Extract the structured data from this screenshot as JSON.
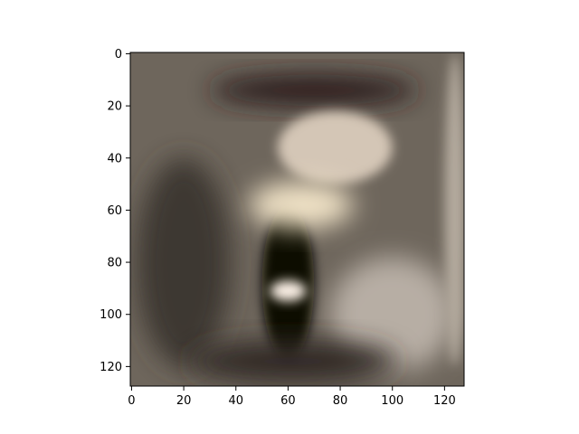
{
  "chart_data": {
    "type": "heatmap",
    "title": "",
    "xlabel": "",
    "ylabel": "",
    "xlim": [
      -0.5,
      127.5
    ],
    "ylim": [
      127.5,
      -0.5
    ],
    "y_inverted": true,
    "grid": false,
    "x_ticks": [
      0,
      20,
      40,
      60,
      80,
      100,
      120
    ],
    "x_tick_labels": [
      "0",
      "20",
      "40",
      "60",
      "80",
      "100",
      "120"
    ],
    "y_ticks": [
      0,
      20,
      40,
      60,
      80,
      100,
      120
    ],
    "y_tick_labels": [
      "0",
      "20",
      "40",
      "60",
      "80",
      "100",
      "120"
    ],
    "image_size": [
      128,
      128
    ],
    "base_color": "#6e665c",
    "regions": [
      {
        "name": "dark-top-band",
        "cx": 70,
        "cy": 14,
        "rx": 40,
        "ry": 6,
        "color": "#2a1f1a"
      },
      {
        "name": "bright-upper-haze",
        "cx": 78,
        "cy": 36,
        "rx": 22,
        "ry": 14,
        "color": "#d4c6b6"
      },
      {
        "name": "left-shadow",
        "cx": 20,
        "cy": 80,
        "rx": 18,
        "ry": 40,
        "color": "#3c3833"
      },
      {
        "name": "dark-vertical-figure",
        "cx": 60,
        "cy": 88,
        "rx": 10,
        "ry": 30,
        "color": "#0c0806"
      },
      {
        "name": "bright-blob-center",
        "cx": 65,
        "cy": 58,
        "rx": 20,
        "ry": 9,
        "color": "#f0e2c6"
      },
      {
        "name": "bright-small-blob",
        "cx": 60,
        "cy": 91,
        "rx": 7,
        "ry": 4,
        "color": "#fbf0e6"
      },
      {
        "name": "right-haze-lower",
        "cx": 100,
        "cy": 100,
        "rx": 24,
        "ry": 22,
        "color": "#b7aea4"
      },
      {
        "name": "right-edge-light",
        "cx": 124,
        "cy": 60,
        "rx": 4,
        "ry": 60,
        "color": "#b4aa9e"
      },
      {
        "name": "bottom-dark",
        "cx": 62,
        "cy": 118,
        "rx": 40,
        "ry": 8,
        "color": "#302a26"
      }
    ]
  }
}
